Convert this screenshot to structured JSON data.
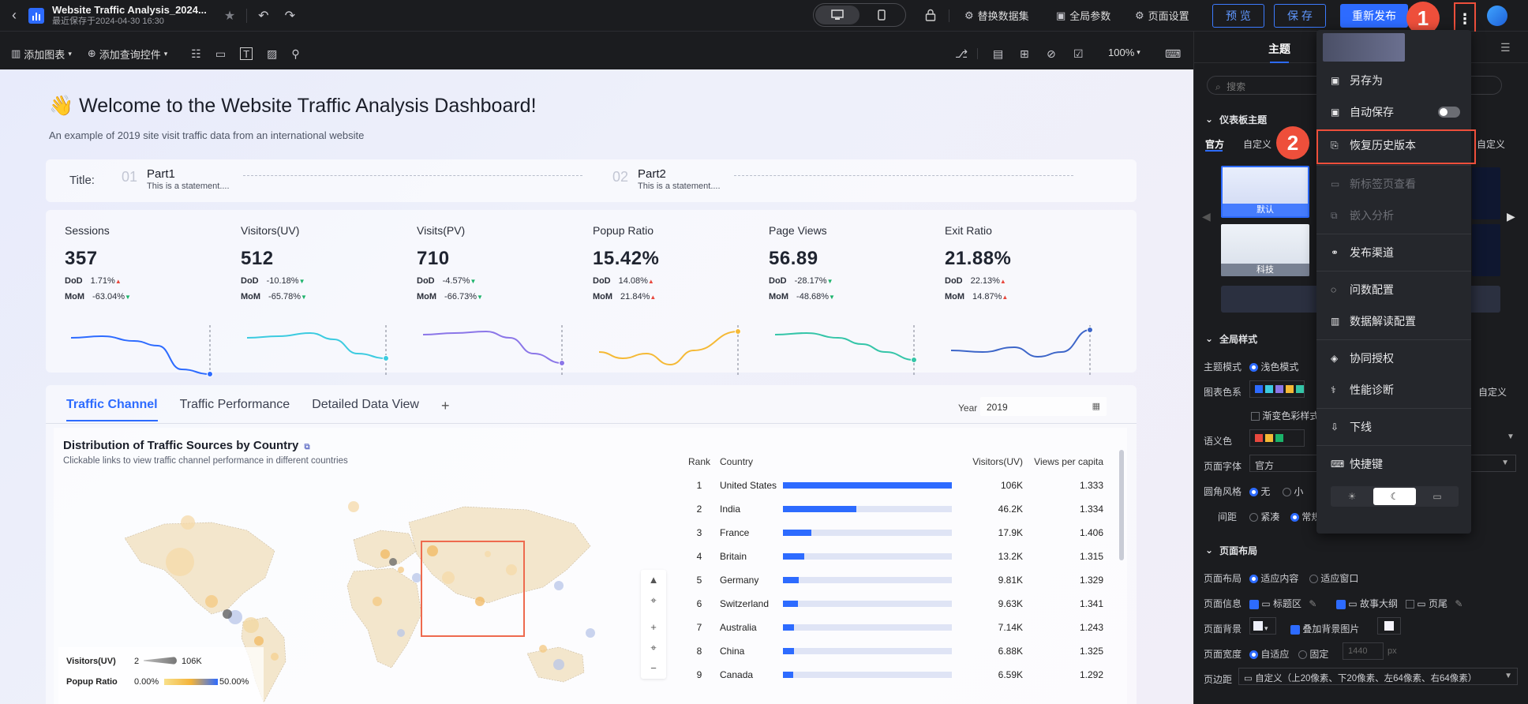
{
  "topbar": {
    "doc_title": "Website Traffic Analysis_2024...",
    "saved_at": "最近保存于2024-04-30 16:30",
    "replace_dataset": "替换数据集",
    "global_params": "全局参数",
    "page_settings": "页面设置",
    "preview": "预 览",
    "save": "保 存",
    "republish": "重新发布"
  },
  "toolbar": {
    "add_chart": "添加图表",
    "add_query": "添加查询控件",
    "zoom": "100%"
  },
  "dashboard": {
    "welcome": "👋 Welcome to the Website Traffic Analysis Dashboard!",
    "subtitle": "An example of 2019 site visit traffic data from an international website",
    "title_label": "Title:",
    "parts": [
      {
        "num": "01",
        "name": "Part1",
        "desc": "This is a statement...."
      },
      {
        "num": "02",
        "name": "Part2",
        "desc": "This is a statement...."
      }
    ],
    "kpis": [
      {
        "title": "Sessions",
        "value": "357",
        "dod": "1.71%",
        "dod_dir": "▲",
        "mom": "-63.04%",
        "mom_dir": "▼",
        "color": "#2d6bff"
      },
      {
        "title": "Visitors(UV)",
        "value": "512",
        "dod": "-10.18%",
        "dod_dir": "▼",
        "mom": "-65.78%",
        "mom_dir": "▼",
        "color": "#3ccbe0"
      },
      {
        "title": "Visits(PV)",
        "value": "710",
        "dod": "-4.57%",
        "dod_dir": "▼",
        "mom": "-66.73%",
        "mom_dir": "▼",
        "color": "#8b76e8"
      },
      {
        "title": "Popup Ratio",
        "value": "15.42%",
        "dod": "14.08%",
        "dod_dir": "▲",
        "mom": "21.84%",
        "mom_dir": "▲",
        "color": "#f5b935"
      },
      {
        "title": "Page Views",
        "value": "56.89",
        "dod": "-28.17%",
        "dod_dir": "▼",
        "mom": "-48.68%",
        "mom_dir": "▼",
        "color": "#35c5a8"
      },
      {
        "title": "Exit Ratio",
        "value": "21.88%",
        "dod": "22.13%",
        "dod_dir": "▲",
        "mom": "14.87%",
        "mom_dir": "▲",
        "color": "#3d66c9"
      }
    ],
    "dod_label": "DoD",
    "mom_label": "MoM",
    "tabs": [
      "Traffic Channel",
      "Traffic Performance",
      "Detailed Data View"
    ],
    "year_label": "Year",
    "year_value": "2019",
    "map_title": "Distribution of Traffic Sources by Country",
    "map_subtitle": "Clickable links to view traffic channel performance in different countries",
    "legend_uv": "Visitors(UV)",
    "legend_uv_min": "2",
    "legend_uv_max": "106K",
    "legend_popup": "Popup Ratio",
    "legend_popup_min": "0.00%",
    "legend_popup_max": "50.00%",
    "table_headers": [
      "Rank",
      "Country",
      "Visitors(UV)",
      "Views per capita"
    ],
    "table_rows": [
      {
        "rank": "1",
        "country": "United States",
        "uv": "106K",
        "uv_ratio": 1.0,
        "vpc": "1.333"
      },
      {
        "rank": "2",
        "country": "India",
        "uv": "46.2K",
        "uv_ratio": 0.436,
        "vpc": "1.334"
      },
      {
        "rank": "3",
        "country": "France",
        "uv": "17.9K",
        "uv_ratio": 0.169,
        "vpc": "1.406"
      },
      {
        "rank": "4",
        "country": "Britain",
        "uv": "13.2K",
        "uv_ratio": 0.125,
        "vpc": "1.315"
      },
      {
        "rank": "5",
        "country": "Germany",
        "uv": "9.81K",
        "uv_ratio": 0.093,
        "vpc": "1.329"
      },
      {
        "rank": "6",
        "country": "Switzerland",
        "uv": "9.63K",
        "uv_ratio": 0.091,
        "vpc": "1.341"
      },
      {
        "rank": "7",
        "country": "Australia",
        "uv": "7.14K",
        "uv_ratio": 0.067,
        "vpc": "1.243"
      },
      {
        "rank": "8",
        "country": "China",
        "uv": "6.88K",
        "uv_ratio": 0.065,
        "vpc": "1.325"
      },
      {
        "rank": "9",
        "country": "Canada",
        "uv": "6.59K",
        "uv_ratio": 0.062,
        "vpc": "1.292"
      }
    ]
  },
  "panel": {
    "tab_theme": "主题",
    "search_placeholder": "搜索",
    "dash_theme": "仪表板主题",
    "official": "官方",
    "custom": "自定义",
    "custom_right": "自定义",
    "theme_default": "默认",
    "theme_tech": "科技",
    "global_style": "全局样式",
    "theme_mode": "主题模式",
    "light_mode": "浅色模式",
    "palette": "图表色系",
    "palette_custom": "自定义",
    "gradient": "渐变色彩样式",
    "semantic": "语义色",
    "page_font": "页面字体",
    "font_value": "官方",
    "corner": "圆角风格",
    "corner_none": "无",
    "corner_small": "小",
    "spacing": "间距",
    "spacing_compact": "紧凑",
    "spacing_normal": "常规",
    "page_layout_section": "页面布局",
    "page_layout": "页面布局",
    "fit_content": "适应内容",
    "fit_window": "适应窗口",
    "page_info": "页面信息",
    "title_area": "标题区",
    "story": "故事大纲",
    "footer": "页尾",
    "page_bg": "页面背景",
    "overlay_bg": "叠加背景图片",
    "page_width": "页面宽度",
    "adaptive": "自适应",
    "fixed": "固定",
    "width_placeholder": "1440",
    "width_unit": "px",
    "page_margin": "页边距",
    "margin_value": "自定义（上20像素、下20像素、左64像素、右64像素）"
  },
  "menu": {
    "items": [
      {
        "label": "另存为",
        "icon": "save-as-icon",
        "disabled": false
      },
      {
        "label": "自动保存",
        "icon": "autosave-icon",
        "disabled": false
      },
      {
        "label": "恢复历史版本",
        "icon": "history-icon",
        "disabled": false
      },
      {
        "label": "新标签页查看",
        "icon": "new-tab-icon",
        "disabled": true
      },
      {
        "label": "嵌入分析",
        "icon": "embed-icon",
        "disabled": true
      },
      {
        "label": "发布渠道",
        "icon": "publish-channel-icon",
        "disabled": false
      },
      {
        "label": "问数配置",
        "icon": "qa-config-icon",
        "disabled": false
      },
      {
        "label": "数据解读配置",
        "icon": "data-interpret-icon",
        "disabled": false
      },
      {
        "label": "协同授权",
        "icon": "collab-icon",
        "disabled": false
      },
      {
        "label": "性能诊断",
        "icon": "diagnose-icon",
        "disabled": false
      },
      {
        "label": "下线",
        "icon": "offline-icon",
        "disabled": false
      },
      {
        "label": "快捷键",
        "icon": "keyboard-icon",
        "disabled": false
      }
    ]
  },
  "annotations": {
    "step1": "1",
    "step2": "2"
  },
  "colors": {
    "accent": "#2d6bff",
    "highlight": "#ee4f3b",
    "palette": [
      "#2d6bff",
      "#3ccbe0",
      "#8b76e8",
      "#f5b935",
      "#35c5a8"
    ],
    "semantic": [
      "#e8483e",
      "#f5b935",
      "#1bb36a"
    ]
  }
}
